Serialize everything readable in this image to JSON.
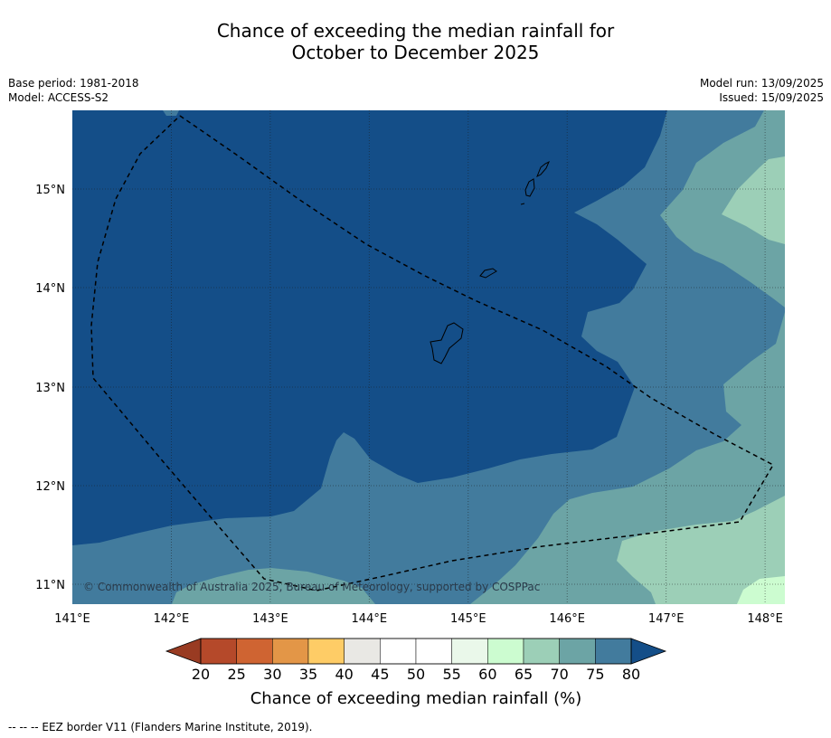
{
  "title_line1": "Chance of exceeding the median rainfall for",
  "title_line2": "October to December 2025",
  "meta_left": {
    "base_period": "Base period: 1981-2018",
    "model": "Model: ACCESS-S2"
  },
  "meta_right": {
    "model_run": "Model run: 13/09/2025",
    "issued": "Issued: 15/09/2025"
  },
  "map": {
    "lon_range": [
      141.0,
      148.2
    ],
    "lat_range": [
      10.8,
      15.8
    ],
    "lon_ticks": [
      141,
      142,
      143,
      144,
      145,
      146,
      147,
      148
    ],
    "lat_ticks": [
      11,
      12,
      13,
      14,
      15
    ],
    "lon_tick_labels": [
      "141°E",
      "142°E",
      "143°E",
      "144°E",
      "145°E",
      "146°E",
      "147°E",
      "148°E"
    ],
    "lat_tick_labels": [
      "11°N",
      "12°N",
      "13°N",
      "14°N",
      "15°N"
    ],
    "copyright": "© Commonwealth of Australia 2025, Bureau of Meteorology, supported by COSPPac",
    "zone_colors": {
      "80plus": "#144e88",
      "75_80": "#427b9d",
      "70_75": "#6ca4a5",
      "65_70": "#9ccfb7",
      "60_65": "#ccfcd0"
    }
  },
  "colorbar": {
    "ticks": [
      "20",
      "25",
      "30",
      "35",
      "40",
      "45",
      "50",
      "55",
      "60",
      "65",
      "70",
      "75",
      "80"
    ],
    "colors": [
      "#b5492a",
      "#cf6432",
      "#e39647",
      "#fecc66",
      "#e9e8e4",
      "#ffffff",
      "#ffffff",
      "#eaf8ea",
      "#ccfcd0",
      "#9ccfb7",
      "#6ca4a5",
      "#427b9d"
    ],
    "under_color": "#993b22",
    "over_color": "#144e88",
    "label": "Chance of exceeding median rainfall (%)"
  },
  "footer": "--  --  -- EEZ border V11 (Flanders Marine Institute, 2019)."
}
